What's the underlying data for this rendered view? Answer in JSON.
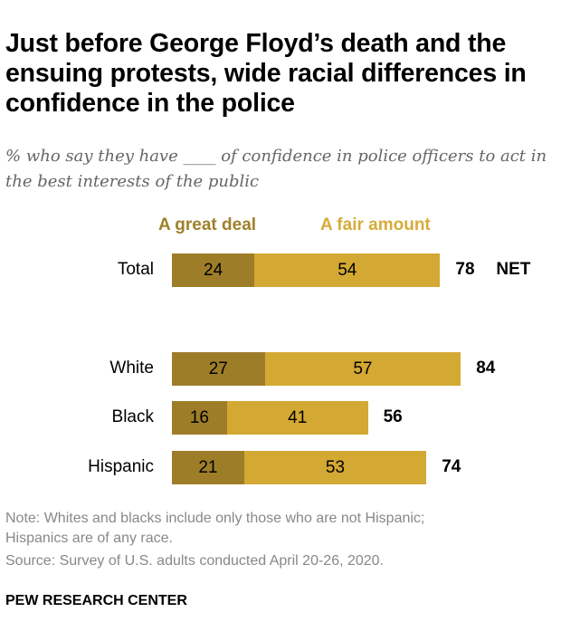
{
  "title": "Just before George Floyd’s death and the ensuing protests, wide racial differences in confidence in the police",
  "subtitle": "% who say they have ____ of confidence in police officers to act in the best interests of the public",
  "chart_data": {
    "type": "bar",
    "orientation": "horizontal-stacked",
    "categories": [
      "Total",
      "White",
      "Black",
      "Hispanic"
    ],
    "series": [
      {
        "name": "A great deal",
        "values": [
          24,
          27,
          16,
          21
        ],
        "color": "#9e7d29"
      },
      {
        "name": "A fair amount",
        "values": [
          54,
          57,
          41,
          53
        ],
        "color": "#d3a833"
      }
    ],
    "net": [
      78,
      84,
      56,
      74
    ],
    "net_label": "NET",
    "legend_placement": "top"
  },
  "notes": [
    "Note: Whites and blacks include only those who are not Hispanic;",
    "Hispanics are of any race.",
    "Source: Survey of U.S. adults conducted April 20-26, 2020."
  ],
  "brand": "PEW RESEARCH CENTER"
}
